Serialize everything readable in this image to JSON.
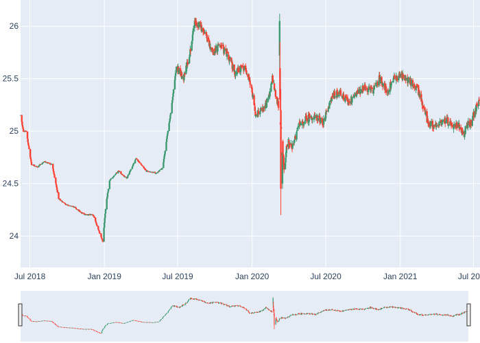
{
  "chart_data": {
    "type": "candlestick",
    "title": "",
    "xlabel": "",
    "ylabel": "",
    "grid": true,
    "ylim": [
      23.7,
      26.25
    ],
    "xlim": [
      "2018-06-08",
      "2021-07-17"
    ],
    "x_ticks": [
      "2018-07-01",
      "2019-01-01",
      "2019-07-01",
      "2020-01-01",
      "2020-07-01",
      "2021-01-01",
      "2021-07-01"
    ],
    "x_tick_labels": [
      "Jul 2018",
      "Jan 2019",
      "Jul 2019",
      "Jan 2020",
      "Jul 2020",
      "Jan 2021",
      "Jul 2021"
    ],
    "y_ticks": [
      24,
      24.5,
      25,
      25.5,
      26
    ],
    "y_tick_labels": [
      "24",
      "24.5",
      "25",
      "25.5",
      "26"
    ],
    "range_slider": true,
    "colors": {
      "plot_bg": "#e5ecf6",
      "increasing": "#3d9970",
      "decreasing": "#ff4136",
      "range_slider_bg": "#e5ecf6",
      "tick_text": "#2a3f5f"
    },
    "anchors": [
      [
        "2018-06-08",
        25.15
      ],
      [
        "2018-06-15",
        25.0
      ],
      [
        "2018-06-22",
        25.0
      ],
      [
        "2018-07-05",
        24.68
      ],
      [
        "2018-07-20",
        24.66
      ],
      [
        "2018-08-05",
        24.71
      ],
      [
        "2018-08-25",
        24.68
      ],
      [
        "2018-09-10",
        24.36
      ],
      [
        "2018-09-28",
        24.3
      ],
      [
        "2018-10-20",
        24.27
      ],
      [
        "2018-11-10",
        24.21
      ],
      [
        "2018-12-05",
        24.2
      ],
      [
        "2018-12-18",
        24.05
      ],
      [
        "2018-12-28",
        23.95
      ],
      [
        "2019-01-05",
        24.3
      ],
      [
        "2019-01-14",
        24.53
      ],
      [
        "2019-02-05",
        24.62
      ],
      [
        "2019-02-25",
        24.55
      ],
      [
        "2019-03-20",
        24.74
      ],
      [
        "2019-04-15",
        24.62
      ],
      [
        "2019-05-10",
        24.6
      ],
      [
        "2019-05-25",
        24.65
      ],
      [
        "2019-06-05",
        24.95
      ],
      [
        "2019-06-15",
        25.2
      ],
      [
        "2019-06-28",
        25.62
      ],
      [
        "2019-07-15",
        25.5
      ],
      [
        "2019-07-30",
        25.7
      ],
      [
        "2019-08-12",
        26.05
      ],
      [
        "2019-08-25",
        26.0
      ],
      [
        "2019-09-10",
        25.92
      ],
      [
        "2019-09-25",
        25.75
      ],
      [
        "2019-10-15",
        25.82
      ],
      [
        "2019-11-05",
        25.7
      ],
      [
        "2019-11-20",
        25.55
      ],
      [
        "2019-12-10",
        25.62
      ],
      [
        "2019-12-28",
        25.45
      ],
      [
        "2020-01-10",
        25.15
      ],
      [
        "2020-01-25",
        25.2
      ],
      [
        "2020-02-10",
        25.3
      ],
      [
        "2020-02-20",
        25.5
      ],
      [
        "2020-03-05",
        25.25
      ],
      [
        "2020-03-14",
        25.0
      ],
      [
        "2020-03-20",
        24.6
      ],
      [
        "2020-03-28",
        24.92
      ],
      [
        "2020-04-10",
        24.85
      ],
      [
        "2020-04-25",
        25.05
      ],
      [
        "2020-05-15",
        25.12
      ],
      [
        "2020-06-05",
        25.15
      ],
      [
        "2020-06-25",
        25.08
      ],
      [
        "2020-07-15",
        25.32
      ],
      [
        "2020-08-05",
        25.38
      ],
      [
        "2020-08-25",
        25.28
      ],
      [
        "2020-09-15",
        25.35
      ],
      [
        "2020-10-05",
        25.42
      ],
      [
        "2020-10-25",
        25.38
      ],
      [
        "2020-11-10",
        25.5
      ],
      [
        "2020-11-30",
        25.38
      ],
      [
        "2020-12-15",
        25.5
      ],
      [
        "2021-01-05",
        25.52
      ],
      [
        "2021-01-25",
        25.47
      ],
      [
        "2021-02-10",
        25.42
      ],
      [
        "2021-02-25",
        25.25
      ],
      [
        "2021-03-10",
        25.08
      ],
      [
        "2021-03-25",
        25.05
      ],
      [
        "2021-04-10",
        25.08
      ],
      [
        "2021-04-25",
        25.1
      ],
      [
        "2021-05-10",
        25.06
      ],
      [
        "2021-05-25",
        25.05
      ],
      [
        "2021-06-05",
        24.95
      ],
      [
        "2021-06-15",
        25.06
      ],
      [
        "2021-06-25",
        25.08
      ],
      [
        "2021-07-05",
        25.2
      ],
      [
        "2021-07-15",
        25.28
      ]
    ],
    "spikes": [
      {
        "date": "2020-03-09",
        "open": 25.72,
        "high": 26.12,
        "low": 25.5,
        "close": 26.05
      },
      {
        "date": "2020-03-10",
        "open": 25.6,
        "high": 25.85,
        "low": 25.2,
        "close": 25.3
      },
      {
        "date": "2020-03-12",
        "open": 25.2,
        "high": 25.4,
        "low": 24.2,
        "close": 24.45
      },
      {
        "date": "2020-03-16",
        "open": 24.5,
        "high": 24.85,
        "low": 24.45,
        "close": 24.8
      }
    ]
  }
}
